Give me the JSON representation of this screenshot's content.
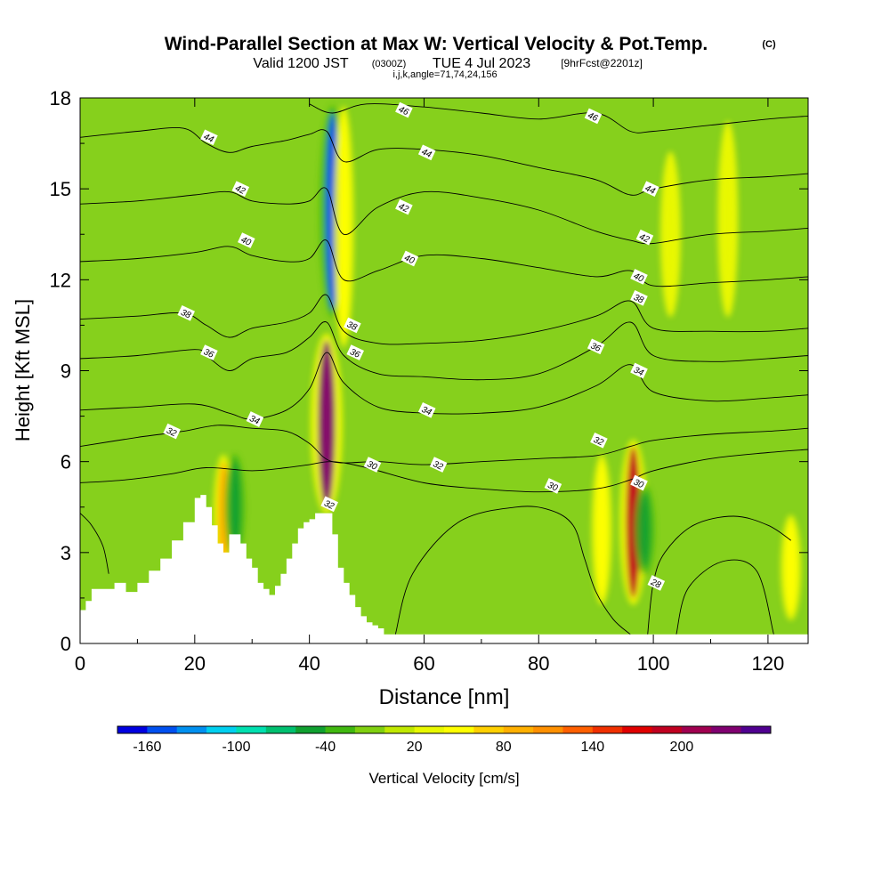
{
  "title": {
    "main": "Wind-Parallel Section at Max W: Vertical Velocity & Pot.Temp.",
    "copyright": "(C)",
    "valid_prefix": "Valid 1200 JST",
    "valid_utc": "(0300Z)",
    "valid_date": "TUE 4 Jul 2023",
    "forecast": "[9hrFcst@2201z]",
    "section_params": "i,j,k,angle=71,74,24,156"
  },
  "chart_data": {
    "type": "heatmap",
    "xlabel": "Distance [nm]",
    "ylabel": "Height [Kft MSL]",
    "xlim": [
      0,
      127
    ],
    "ylim": [
      0,
      18
    ],
    "x_ticks": [
      0,
      20,
      40,
      60,
      80,
      100,
      120
    ],
    "y_ticks": [
      0,
      3,
      6,
      9,
      12,
      15,
      18
    ],
    "grid": false,
    "colorbar": {
      "label": "Vertical Velocity [cm/s]",
      "tick_labels": [
        "-160",
        "-100",
        "-40",
        "20",
        "80",
        "140",
        "200"
      ],
      "colors": [
        "#0000e0",
        "#0050f0",
        "#0090f0",
        "#00d0f0",
        "#00e0b0",
        "#00c070",
        "#10a030",
        "#40b810",
        "#80d010",
        "#c0e800",
        "#e8f800",
        "#ffff00",
        "#ffd000",
        "#ffb000",
        "#ff9000",
        "#ff6000",
        "#f03000",
        "#e00000",
        "#c00020",
        "#a00050",
        "#800070",
        "#500090"
      ]
    },
    "background_color": "#86d01c",
    "terrain_profile": {
      "x": [
        0,
        1,
        2,
        6,
        8,
        10,
        12,
        14,
        16,
        18,
        20,
        21,
        22,
        23,
        24,
        25,
        26,
        28,
        29,
        30,
        31,
        32,
        33,
        34,
        35,
        36,
        37,
        38,
        39,
        40,
        41,
        42,
        43,
        44,
        45,
        46,
        47,
        48,
        49,
        50,
        51,
        52,
        53,
        54,
        55
      ],
      "height_kft": [
        1.1,
        1.4,
        1.8,
        2.0,
        1.7,
        2.0,
        2.4,
        2.8,
        3.4,
        4.0,
        4.8,
        4.9,
        4.5,
        3.9,
        3.3,
        3.0,
        3.6,
        3.3,
        2.8,
        2.5,
        2.0,
        1.8,
        1.6,
        1.9,
        2.3,
        2.8,
        3.3,
        3.8,
        4.0,
        4.1,
        4.3,
        4.3,
        4.3,
        3.6,
        2.5,
        2.0,
        1.6,
        1.2,
        0.9,
        0.7,
        0.6,
        0.5,
        0.3,
        0.3,
        0.3
      ]
    },
    "velocity_features": [
      {
        "x": 43,
        "y_range": [
          4.5,
          10
        ],
        "value": 220
      },
      {
        "x": 44,
        "y_range": [
          11,
          17.5
        ],
        "value": -160
      },
      {
        "x": 96.5,
        "y_range": [
          1.5,
          6.5
        ],
        "value": 180
      },
      {
        "x": 98.5,
        "y_range": [
          2.5,
          5
        ],
        "value": -60
      },
      {
        "x": 25,
        "y_range": [
          2.5,
          6
        ],
        "value": 80
      },
      {
        "x": 27,
        "y_range": [
          3,
          6
        ],
        "value": -60
      },
      {
        "x": 46,
        "y_range": [
          10,
          17.5
        ],
        "value": 40
      },
      {
        "x": 91,
        "y_range": [
          1.5,
          6
        ],
        "value": 40
      },
      {
        "x": 124,
        "y_range": [
          1,
          4
        ],
        "value": 50
      },
      {
        "x": 103,
        "y_range": [
          11,
          16
        ],
        "value": 30
      },
      {
        "x": 113,
        "y_range": [
          11,
          17
        ],
        "value": 30
      }
    ],
    "isentropes": [
      {
        "label": "30",
        "x": [
          0,
          8,
          16,
          22,
          30,
          36,
          40,
          44,
          50,
          60,
          70,
          80,
          90,
          96,
          100,
          110,
          120,
          127
        ],
        "y": [
          5.3,
          5.4,
          5.6,
          5.8,
          5.7,
          5.8,
          5.9,
          6.0,
          5.8,
          5.3,
          5.1,
          5.0,
          5.1,
          5.4,
          5.7,
          6.1,
          6.3,
          6.4
        ]
      },
      {
        "label": "32",
        "x": [
          0,
          10,
          18,
          24,
          30,
          36,
          40,
          44,
          52,
          60,
          70,
          80,
          90,
          96,
          100,
          110,
          120,
          127
        ],
        "y": [
          6.5,
          6.8,
          7.0,
          7.2,
          7.1,
          7.0,
          6.6,
          6.0,
          6.0,
          5.9,
          6.0,
          6.1,
          6.2,
          6.5,
          6.7,
          6.9,
          7.0,
          7.1
        ]
      },
      {
        "label": "34",
        "x": [
          0,
          10,
          20,
          26,
          30,
          36,
          40,
          43,
          46,
          52,
          60,
          70,
          80,
          90,
          96,
          100,
          110,
          120,
          127
        ],
        "y": [
          7.7,
          7.8,
          7.9,
          7.6,
          7.4,
          7.7,
          8.4,
          9.6,
          8.6,
          7.8,
          7.6,
          7.6,
          7.8,
          8.5,
          9.2,
          8.3,
          8.0,
          8.1,
          8.2
        ]
      },
      {
        "label": "36",
        "x": [
          0,
          10,
          20,
          22,
          26,
          30,
          36,
          40,
          43,
          46,
          52,
          60,
          70,
          80,
          90,
          96,
          100,
          110,
          120,
          127
        ],
        "y": [
          9.4,
          9.5,
          9.7,
          9.5,
          9.0,
          9.4,
          9.6,
          10.1,
          10.6,
          9.5,
          8.9,
          8.8,
          8.7,
          8.9,
          9.8,
          10.6,
          9.5,
          9.3,
          9.4,
          9.5
        ]
      },
      {
        "label": "38",
        "x": [
          0,
          10,
          18,
          22,
          26,
          30,
          36,
          40,
          43,
          46,
          52,
          60,
          70,
          80,
          90,
          96,
          100,
          110,
          120,
          127
        ],
        "y": [
          10.7,
          10.8,
          10.9,
          10.5,
          10.1,
          10.4,
          10.6,
          10.9,
          11.5,
          10.3,
          9.9,
          9.9,
          10.0,
          10.3,
          10.8,
          11.3,
          10.4,
          10.3,
          10.3,
          10.4
        ]
      },
      {
        "label": "40",
        "x": [
          0,
          10,
          20,
          26,
          30,
          36,
          40,
          43,
          46,
          52,
          60,
          70,
          80,
          90,
          96,
          100,
          110,
          120,
          127
        ],
        "y": [
          12.6,
          12.7,
          12.9,
          13.1,
          12.8,
          12.6,
          12.7,
          13.3,
          12.0,
          12.3,
          12.8,
          12.7,
          12.4,
          12.1,
          12.3,
          11.8,
          11.9,
          12.0,
          12.1
        ]
      },
      {
        "label": "42",
        "x": [
          0,
          10,
          20,
          26,
          30,
          36,
          40,
          43,
          46,
          52,
          60,
          70,
          80,
          90,
          96,
          100,
          110,
          120,
          127
        ],
        "y": [
          14.5,
          14.6,
          14.8,
          14.9,
          14.6,
          14.5,
          14.6,
          15.0,
          13.5,
          14.4,
          14.9,
          14.7,
          14.3,
          13.6,
          13.3,
          13.2,
          13.5,
          13.6,
          13.7
        ]
      },
      {
        "label": "44",
        "x": [
          0,
          10,
          18,
          22,
          26,
          30,
          36,
          40,
          43,
          46,
          52,
          60,
          70,
          80,
          90,
          96,
          100,
          110,
          120,
          127
        ],
        "y": [
          16.7,
          16.9,
          17.0,
          16.5,
          16.2,
          16.4,
          16.6,
          16.8,
          16.9,
          15.9,
          16.3,
          16.3,
          16.1,
          15.7,
          15.3,
          14.8,
          15.0,
          15.3,
          15.4,
          15.5
        ]
      },
      {
        "label": "46",
        "x": [
          40,
          44,
          50,
          60,
          70,
          80,
          90,
          96,
          100,
          110,
          120,
          127
        ],
        "y": [
          17.8,
          17.5,
          17.8,
          17.7,
          17.5,
          17.3,
          17.5,
          16.9,
          16.9,
          17.1,
          17.3,
          17.4
        ]
      }
    ],
    "low_level_contours": [
      {
        "label": "28",
        "x": [
          55,
          58,
          66,
          76,
          82,
          86,
          88,
          90,
          93,
          96
        ],
        "y": [
          0.3,
          2.3,
          4.0,
          4.5,
          4.4,
          3.9,
          2.8,
          1.7,
          0.8,
          0.3
        ]
      },
      {
        "label": "28",
        "x": [
          99,
          100,
          102,
          107,
          114,
          120,
          124
        ],
        "y": [
          0.3,
          2.0,
          3.0,
          3.9,
          4.2,
          3.9,
          3.4
        ]
      },
      {
        "label": "28",
        "x": [
          104,
          106,
          112,
          118,
          121
        ],
        "y": [
          0.3,
          1.8,
          2.7,
          2.4,
          0.3
        ]
      },
      {
        "label": "28",
        "x": [
          0,
          2,
          4,
          5
        ],
        "y": [
          4.3,
          3.9,
          3.2,
          2.3
        ]
      }
    ],
    "contour_labels": [
      {
        "text": "46",
        "x": 56.5,
        "y": 17.6
      },
      {
        "text": "46",
        "x": 89.5,
        "y": 17.4
      },
      {
        "text": "44",
        "x": 22.5,
        "y": 16.7
      },
      {
        "text": "44",
        "x": 60.5,
        "y": 16.2
      },
      {
        "text": "44",
        "x": 99.5,
        "y": 15.0
      },
      {
        "text": "42",
        "x": 28,
        "y": 15.0
      },
      {
        "text": "42",
        "x": 56.5,
        "y": 14.4
      },
      {
        "text": "42",
        "x": 98.5,
        "y": 13.4
      },
      {
        "text": "40",
        "x": 29,
        "y": 13.3
      },
      {
        "text": "40",
        "x": 57.5,
        "y": 12.7
      },
      {
        "text": "40",
        "x": 97.5,
        "y": 12.1
      },
      {
        "text": "38",
        "x": 18.5,
        "y": 10.9
      },
      {
        "text": "38",
        "x": 47.5,
        "y": 10.5
      },
      {
        "text": "38",
        "x": 97.5,
        "y": 11.4
      },
      {
        "text": "36",
        "x": 22.5,
        "y": 9.6
      },
      {
        "text": "36",
        "x": 48,
        "y": 9.6
      },
      {
        "text": "36",
        "x": 90,
        "y": 9.8
      },
      {
        "text": "34",
        "x": 30.5,
        "y": 7.4
      },
      {
        "text": "34",
        "x": 60.5,
        "y": 7.7
      },
      {
        "text": "34",
        "x": 97.5,
        "y": 9.0
      },
      {
        "text": "32",
        "x": 16,
        "y": 7.0
      },
      {
        "text": "32",
        "x": 62.5,
        "y": 5.9
      },
      {
        "text": "32",
        "x": 90.5,
        "y": 6.7
      },
      {
        "text": "32",
        "x": 43.5,
        "y": 4.6
      },
      {
        "text": "30",
        "x": 51,
        "y": 5.9
      },
      {
        "text": "30",
        "x": 82.5,
        "y": 5.2
      },
      {
        "text": "30",
        "x": 97.5,
        "y": 5.3
      },
      {
        "text": "28",
        "x": 100.5,
        "y": 2.0
      }
    ]
  }
}
